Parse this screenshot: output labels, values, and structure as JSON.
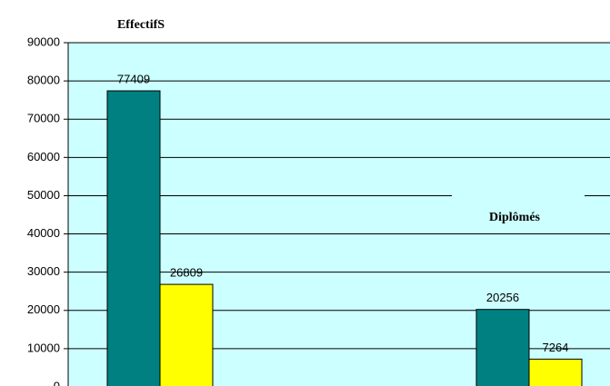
{
  "chart_data": {
    "type": "bar",
    "categories": [
      "EffectifS",
      "Diplômés"
    ],
    "series": [
      {
        "color": "#008080",
        "values": [
          77409,
          20256
        ]
      },
      {
        "color": "#ffff00",
        "values": [
          26809,
          7264
        ]
      }
    ],
    "ylim": [
      0,
      90000
    ],
    "yticks": [
      0,
      10000,
      20000,
      30000,
      40000,
      50000,
      60000,
      70000,
      80000,
      90000
    ],
    "grid": true
  }
}
